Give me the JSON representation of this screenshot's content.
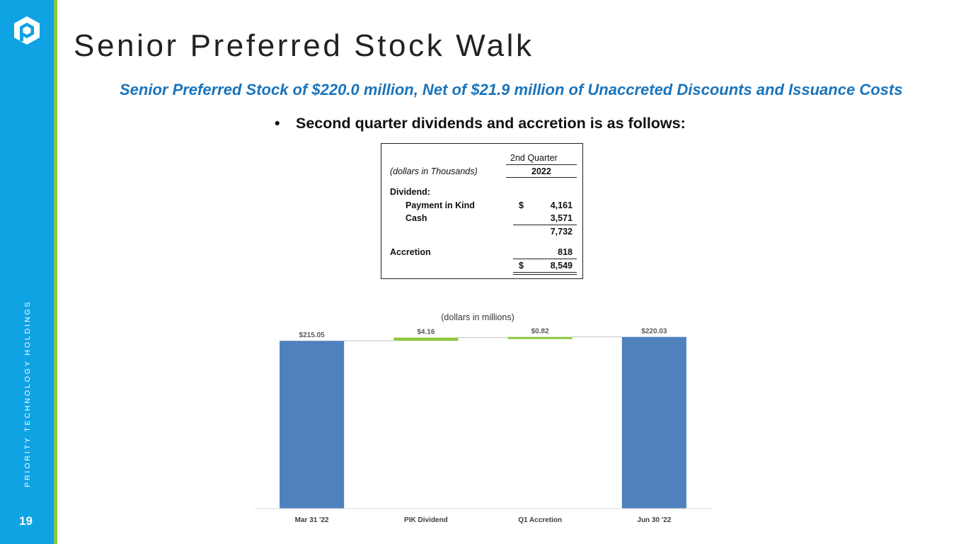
{
  "brand": {
    "vertical_text": "PRIORITY TECHNOLOGY HOLDINGS",
    "page_number": "19",
    "sidebar_color": "#0fa3e3",
    "accent_color": "#8dc63f",
    "logo_icon": "priority-logo-icon"
  },
  "page": {
    "title": "Senior Preferred Stock Walk",
    "subtitle": "Senior Preferred Stock of $220.0 million, Net of $21.9 million of Unaccreted Discounts and Issuance Costs",
    "bullet_symbol": "•",
    "bullet": "Second quarter dividends and accretion is as follows:"
  },
  "table": {
    "period_header": "2nd Quarter",
    "year_header": "2022",
    "units_label": "(dollars in Thousands)",
    "dividend_label": "Dividend:",
    "pik_label": "Payment in Kind",
    "currency_symbol": "$",
    "pik_value": "4,161",
    "cash_label": "Cash",
    "cash_value": "3,571",
    "dividend_subtotal": "7,732",
    "accretion_label": "Accretion",
    "accretion_value": "818",
    "total_value": "8,549"
  },
  "chart_data": {
    "type": "waterfall",
    "title": "(dollars in millions)",
    "categories": [
      "Mar 31 '22",
      "PIK Dividend",
      "Q1 Accretion",
      "Jun 30 '22"
    ],
    "values": [
      215.05,
      4.16,
      0.82,
      220.03
    ],
    "kinds": [
      "total",
      "increase",
      "increase",
      "total"
    ],
    "data_labels": [
      "$215.05",
      "$4.16",
      "$0.82",
      "$220.03"
    ],
    "colors": {
      "total": "#4f81bd",
      "increase": "#8dc63f"
    },
    "ylim": [
      0,
      227
    ],
    "grid": false,
    "legend": "none"
  }
}
